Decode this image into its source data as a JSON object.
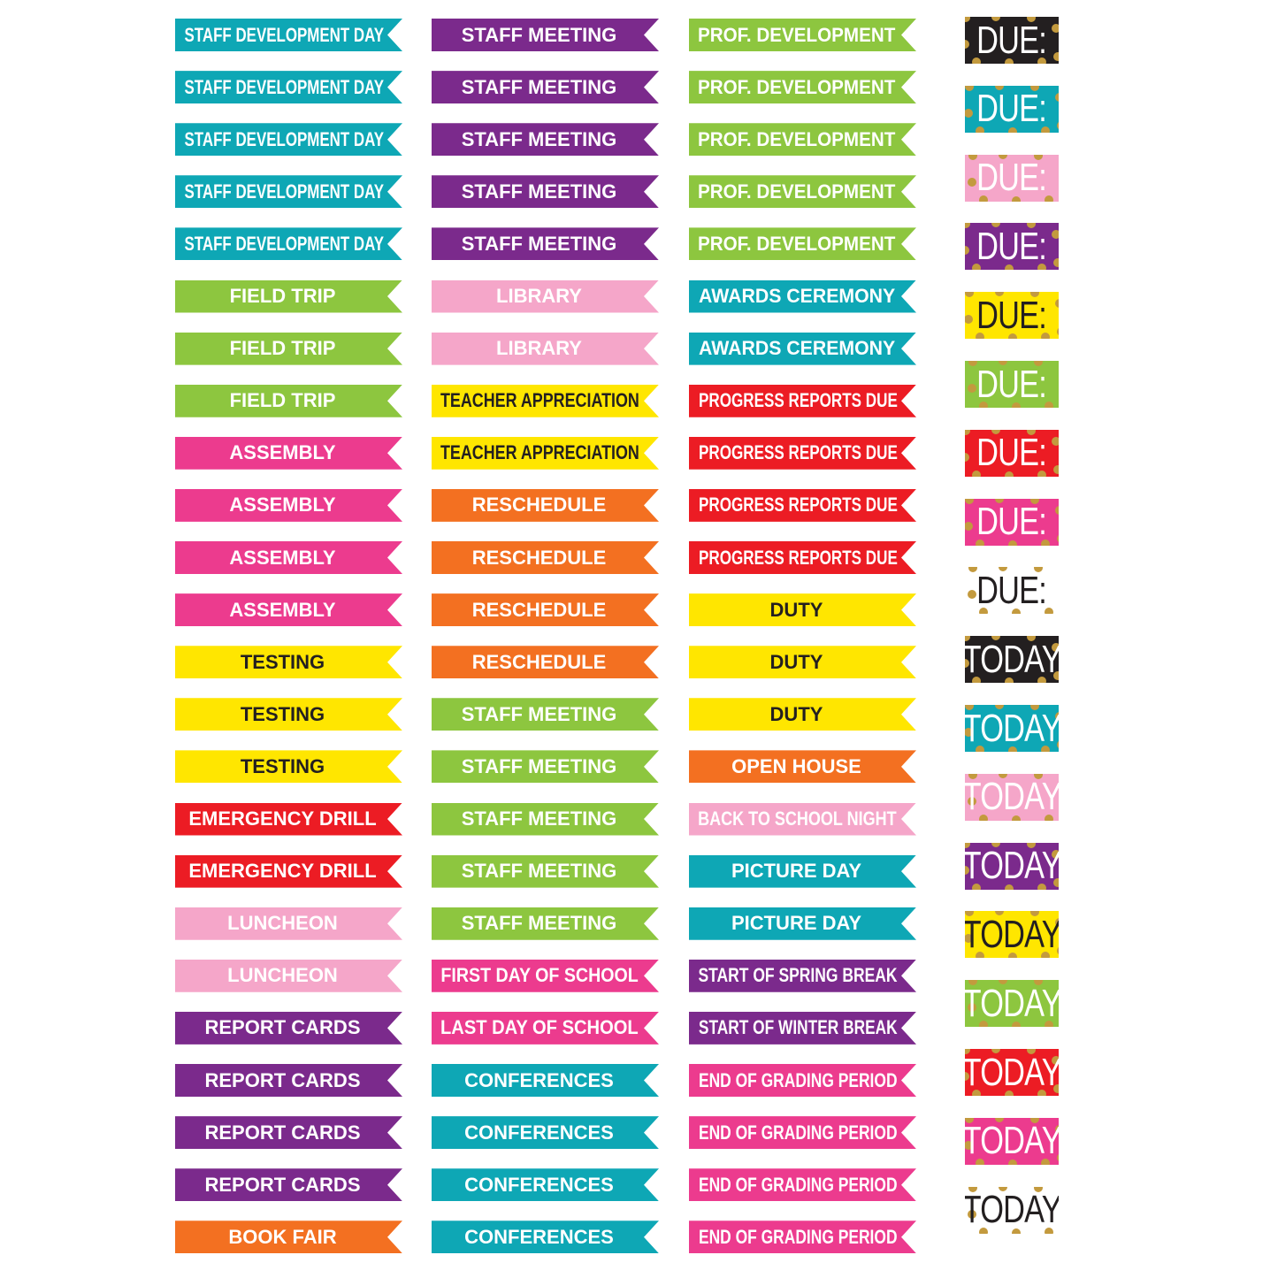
{
  "palette": {
    "teal": "#0ea7b5",
    "purple": "#7b2a8c",
    "green": "#8dc63f",
    "pink": "#f5a6c9",
    "yellow": "#ffe600",
    "red": "#ec1c24",
    "magenta": "#ec3b8e",
    "orange": "#f37021",
    "black": "#231f20",
    "white": "#ffffff",
    "gold": "#c39a3e"
  },
  "columns": [
    [
      {
        "label": "STAFF DEVELOPMENT DAY",
        "color": "teal"
      },
      {
        "label": "STAFF DEVELOPMENT DAY",
        "color": "teal"
      },
      {
        "label": "STAFF DEVELOPMENT DAY",
        "color": "teal"
      },
      {
        "label": "STAFF DEVELOPMENT DAY",
        "color": "teal"
      },
      {
        "label": "STAFF DEVELOPMENT DAY",
        "color": "teal"
      },
      {
        "label": "FIELD TRIP",
        "color": "green"
      },
      {
        "label": "FIELD TRIP",
        "color": "green"
      },
      {
        "label": "FIELD TRIP",
        "color": "green"
      },
      {
        "label": "ASSEMBLY",
        "color": "magenta"
      },
      {
        "label": "ASSEMBLY",
        "color": "magenta"
      },
      {
        "label": "ASSEMBLY",
        "color": "magenta"
      },
      {
        "label": "ASSEMBLY",
        "color": "magenta"
      },
      {
        "label": "TESTING",
        "color": "yellow"
      },
      {
        "label": "TESTING",
        "color": "yellow"
      },
      {
        "label": "TESTING",
        "color": "yellow"
      },
      {
        "label": "EMERGENCY DRILL",
        "color": "red"
      },
      {
        "label": "EMERGENCY DRILL",
        "color": "red"
      },
      {
        "label": "LUNCHEON",
        "color": "pink"
      },
      {
        "label": "LUNCHEON",
        "color": "pink"
      },
      {
        "label": "REPORT CARDS",
        "color": "purple"
      },
      {
        "label": "REPORT CARDS",
        "color": "purple"
      },
      {
        "label": "REPORT CARDS",
        "color": "purple"
      },
      {
        "label": "REPORT CARDS",
        "color": "purple"
      },
      {
        "label": "BOOK FAIR",
        "color": "orange"
      }
    ],
    [
      {
        "label": "STAFF MEETING",
        "color": "purple"
      },
      {
        "label": "STAFF MEETING",
        "color": "purple"
      },
      {
        "label": "STAFF MEETING",
        "color": "purple"
      },
      {
        "label": "STAFF MEETING",
        "color": "purple"
      },
      {
        "label": "STAFF MEETING",
        "color": "purple"
      },
      {
        "label": "LIBRARY",
        "color": "pink"
      },
      {
        "label": "LIBRARY",
        "color": "pink"
      },
      {
        "label": "TEACHER APPRECIATION",
        "color": "yellow"
      },
      {
        "label": "TEACHER APPRECIATION",
        "color": "yellow"
      },
      {
        "label": "RESCHEDULE",
        "color": "orange"
      },
      {
        "label": "RESCHEDULE",
        "color": "orange"
      },
      {
        "label": "RESCHEDULE",
        "color": "orange"
      },
      {
        "label": "RESCHEDULE",
        "color": "orange"
      },
      {
        "label": "STAFF MEETING",
        "color": "green"
      },
      {
        "label": "STAFF MEETING",
        "color": "green"
      },
      {
        "label": "STAFF MEETING",
        "color": "green"
      },
      {
        "label": "STAFF MEETING",
        "color": "green"
      },
      {
        "label": "STAFF MEETING",
        "color": "green"
      },
      {
        "label": "FIRST DAY OF SCHOOL",
        "color": "magenta"
      },
      {
        "label": "LAST DAY OF SCHOOL",
        "color": "magenta"
      },
      {
        "label": "CONFERENCES",
        "color": "teal"
      },
      {
        "label": "CONFERENCES",
        "color": "teal"
      },
      {
        "label": "CONFERENCES",
        "color": "teal"
      },
      {
        "label": "CONFERENCES",
        "color": "teal"
      }
    ],
    [
      {
        "label": "PROF. DEVELOPMENT",
        "color": "green"
      },
      {
        "label": "PROF. DEVELOPMENT",
        "color": "green"
      },
      {
        "label": "PROF. DEVELOPMENT",
        "color": "green"
      },
      {
        "label": "PROF. DEVELOPMENT",
        "color": "green"
      },
      {
        "label": "PROF. DEVELOPMENT",
        "color": "green"
      },
      {
        "label": "AWARDS CEREMONY",
        "color": "teal"
      },
      {
        "label": "AWARDS CEREMONY",
        "color": "teal"
      },
      {
        "label": "PROGRESS REPORTS DUE",
        "color": "red"
      },
      {
        "label": "PROGRESS REPORTS DUE",
        "color": "red"
      },
      {
        "label": "PROGRESS REPORTS DUE",
        "color": "red"
      },
      {
        "label": "PROGRESS REPORTS DUE",
        "color": "red"
      },
      {
        "label": "DUTY",
        "color": "yellow"
      },
      {
        "label": "DUTY",
        "color": "yellow"
      },
      {
        "label": "DUTY",
        "color": "yellow"
      },
      {
        "label": "OPEN HOUSE",
        "color": "orange"
      },
      {
        "label": "BACK TO SCHOOL NIGHT",
        "color": "pink"
      },
      {
        "label": "PICTURE DAY",
        "color": "teal"
      },
      {
        "label": "PICTURE DAY",
        "color": "teal"
      },
      {
        "label": "START OF SPRING BREAK",
        "color": "purple"
      },
      {
        "label": "START OF WINTER BREAK",
        "color": "purple"
      },
      {
        "label": "END OF GRADING PERIOD",
        "color": "magenta"
      },
      {
        "label": "END OF GRADING PERIOD",
        "color": "magenta"
      },
      {
        "label": "END OF GRADING PERIOD",
        "color": "magenta"
      },
      {
        "label": "END OF GRADING PERIOD",
        "color": "magenta"
      }
    ]
  ],
  "tags": [
    {
      "label": "DUE:",
      "color": "black"
    },
    {
      "label": "DUE:",
      "color": "teal"
    },
    {
      "label": "DUE:",
      "color": "pink"
    },
    {
      "label": "DUE:",
      "color": "purple"
    },
    {
      "label": "DUE:",
      "color": "yellow"
    },
    {
      "label": "DUE:",
      "color": "green"
    },
    {
      "label": "DUE:",
      "color": "red"
    },
    {
      "label": "DUE:",
      "color": "magenta"
    },
    {
      "label": "DUE:",
      "color": "white"
    },
    {
      "label": "TODAY",
      "color": "black"
    },
    {
      "label": "TODAY",
      "color": "teal"
    },
    {
      "label": "TODAY",
      "color": "pink"
    },
    {
      "label": "TODAY",
      "color": "purple"
    },
    {
      "label": "TODAY",
      "color": "yellow"
    },
    {
      "label": "TODAY",
      "color": "green"
    },
    {
      "label": "TODAY",
      "color": "red"
    },
    {
      "label": "TODAY",
      "color": "magenta"
    },
    {
      "label": "TODAY",
      "color": "white"
    }
  ]
}
